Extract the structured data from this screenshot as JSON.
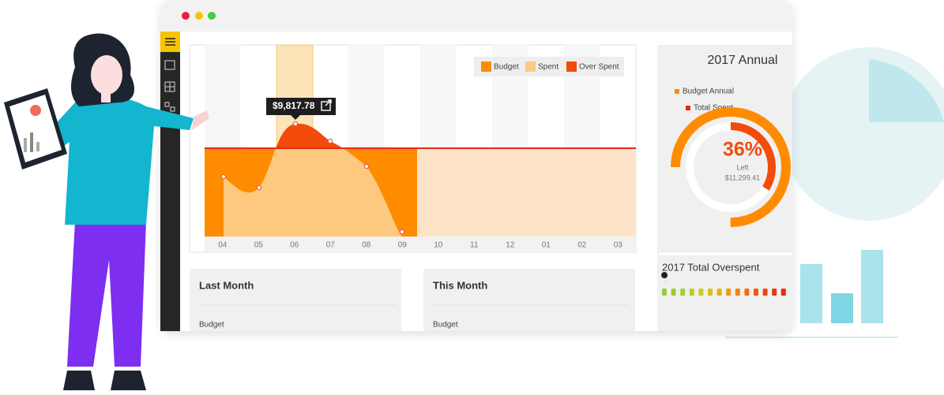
{
  "window": {
    "legend": [
      "Budget",
      "Spent",
      "Over Spent"
    ],
    "tooltip": "$9,817.78",
    "months": [
      "04",
      "05",
      "06",
      "07",
      "08",
      "09",
      "10",
      "11",
      "12",
      "01",
      "02",
      "03"
    ],
    "annual": {
      "title": "2017 Annual",
      "legend": [
        "Budget Annual",
        "Total Spent"
      ],
      "percent": "36%",
      "left_label": "Left",
      "left_amount": "$11,299.41"
    },
    "overspent": {
      "title": "2017 Total Overspent"
    },
    "cards": [
      {
        "title": "Last Month",
        "row": "Budget"
      },
      {
        "title": "This Month",
        "row": "Budget"
      }
    ]
  }
}
